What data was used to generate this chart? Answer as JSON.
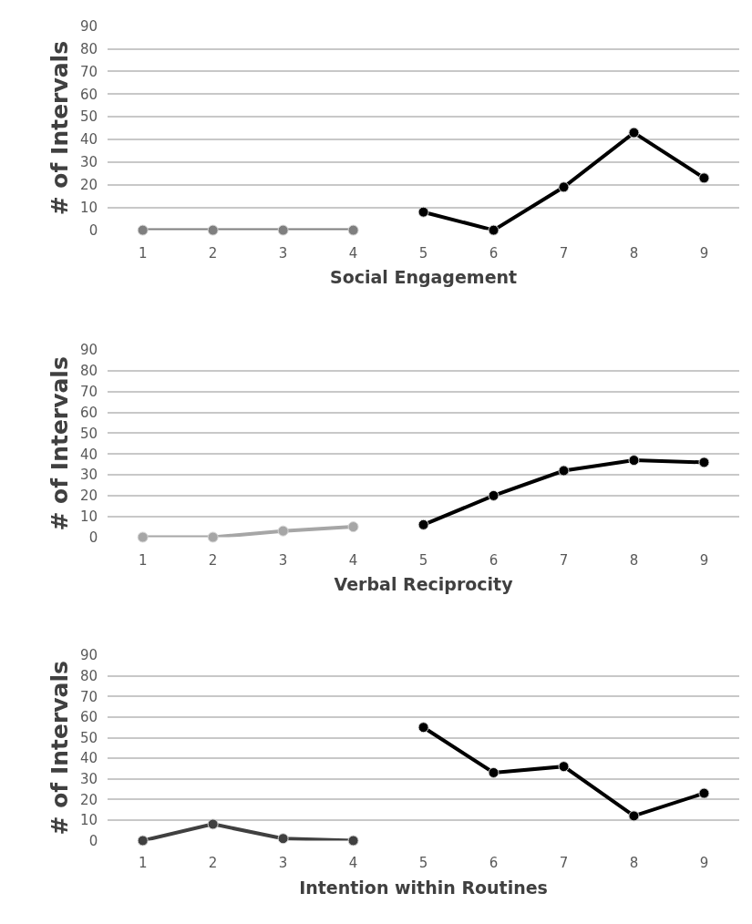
{
  "chart_data": [
    {
      "type": "line",
      "xlabel": "Social Engagement",
      "ylabel": "# of Intervals",
      "categories": [
        "1",
        "2",
        "3",
        "4",
        "5",
        "6",
        "7",
        "8",
        "9"
      ],
      "ylim": [
        0,
        90
      ],
      "yticks": [
        0,
        10,
        20,
        30,
        40,
        50,
        60,
        70,
        80,
        90
      ],
      "grid": "y",
      "marker": "circle",
      "series": [
        {
          "color": "#7f7f7f",
          "values": [
            0,
            0,
            0,
            0,
            null,
            null,
            null,
            null,
            null
          ]
        },
        {
          "color": "#000000",
          "values": [
            null,
            null,
            null,
            null,
            8,
            0,
            19,
            43,
            23
          ]
        }
      ]
    },
    {
      "type": "line",
      "xlabel": "Verbal Reciprocity",
      "ylabel": "# of Intervals",
      "categories": [
        "1",
        "2",
        "3",
        "4",
        "5",
        "6",
        "7",
        "8",
        "9"
      ],
      "ylim": [
        0,
        90
      ],
      "yticks": [
        0,
        10,
        20,
        30,
        40,
        50,
        60,
        70,
        80,
        90
      ],
      "grid": "y",
      "marker": "circle",
      "series": [
        {
          "color": "#a6a6a6",
          "values": [
            0,
            0,
            3,
            5,
            null,
            null,
            null,
            null,
            null
          ]
        },
        {
          "color": "#000000",
          "values": [
            null,
            null,
            null,
            null,
            6,
            20,
            32,
            37,
            36
          ]
        }
      ]
    },
    {
      "type": "line",
      "xlabel": "Intention within Routines",
      "ylabel": "# of Intervals",
      "categories": [
        "1",
        "2",
        "3",
        "4",
        "5",
        "6",
        "7",
        "8",
        "9"
      ],
      "ylim": [
        0,
        90
      ],
      "yticks": [
        0,
        10,
        20,
        30,
        40,
        50,
        60,
        70,
        80,
        90
      ],
      "grid": "y",
      "marker": "circle",
      "series": [
        {
          "color": "#404040",
          "values": [
            0,
            8,
            1,
            0,
            null,
            null,
            null,
            null,
            null
          ]
        },
        {
          "color": "#000000",
          "values": [
            null,
            null,
            null,
            null,
            55,
            33,
            36,
            12,
            23
          ]
        }
      ]
    }
  ]
}
